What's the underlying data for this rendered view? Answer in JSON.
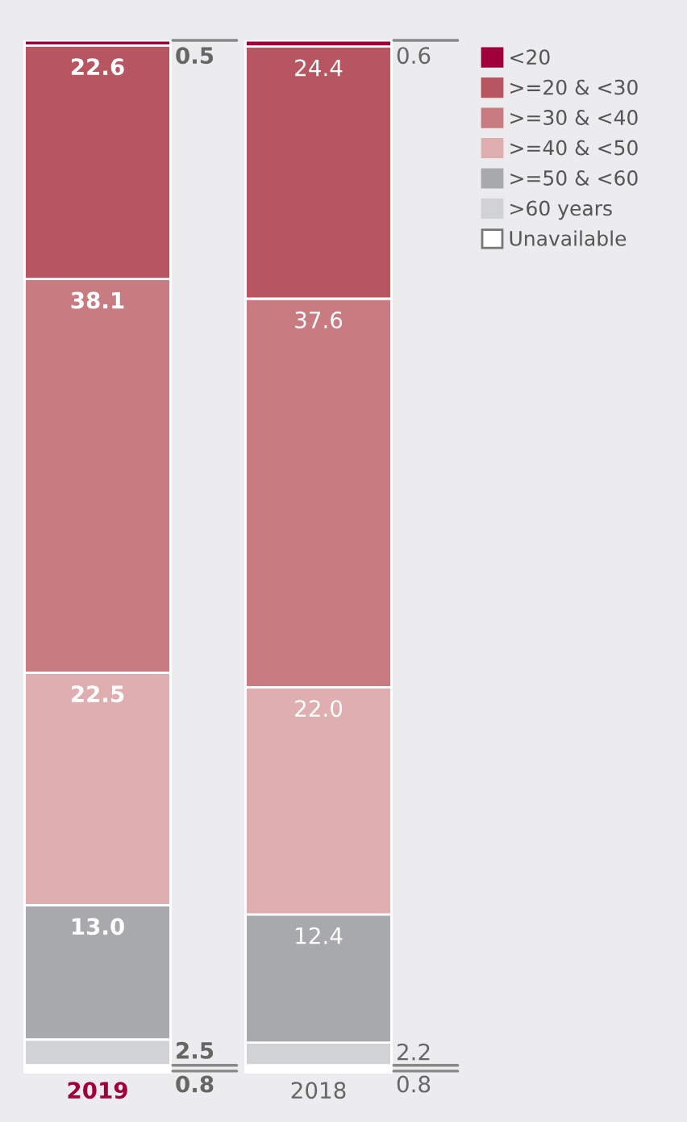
{
  "chart_data": {
    "type": "bar",
    "stacked": true,
    "categories": [
      "2019",
      "2018"
    ],
    "series": [
      {
        "name": "Unavailable",
        "color": "#ffffff",
        "values": [
          0.8,
          0.8
        ],
        "value_labels": [
          "0.8",
          "0.8"
        ]
      },
      {
        "name": ">60 years",
        "color": "#d1d2d4",
        "values": [
          2.5,
          2.2
        ],
        "value_labels": [
          "2.5",
          "2.2"
        ]
      },
      {
        "name": ">=50 & <60",
        "color": "#a8a9ad",
        "values": [
          13.0,
          12.4
        ],
        "value_labels": [
          "13.0",
          "12.4"
        ]
      },
      {
        "name": ">=40 & <50",
        "color": "#dfaeb0",
        "values": [
          22.5,
          22.0
        ],
        "value_labels": [
          "22.5",
          "22.0"
        ]
      },
      {
        "name": ">=30 & <40",
        "color": "#c87b81",
        "values": [
          38.1,
          37.6
        ],
        "value_labels": [
          "38.1",
          "37.6"
        ]
      },
      {
        "name": ">=20 & <30",
        "color": "#b75560",
        "values": [
          22.6,
          24.4
        ],
        "value_labels": [
          "22.6",
          "24.4"
        ]
      },
      {
        "name": "<20",
        "color": "#a0003a",
        "values": [
          0.5,
          0.6
        ],
        "value_labels": [
          "0.5",
          "0.6"
        ]
      }
    ],
    "ylim": [
      0,
      100
    ],
    "tick_labels": "x",
    "legend": "top right"
  }
}
